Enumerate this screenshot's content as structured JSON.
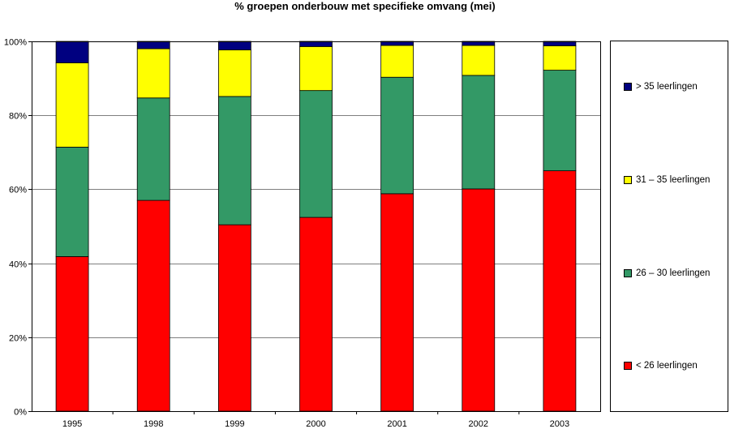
{
  "chart_data": {
    "type": "bar",
    "stacked": true,
    "title": "% groepen onderbouw met specifieke omvang (mei)",
    "xlabel": "",
    "ylabel": "",
    "categories": [
      "1995",
      "1998",
      "1999",
      "2000",
      "2001",
      "2002",
      "2003"
    ],
    "ylim": [
      0,
      100
    ],
    "yticks": [
      "0%",
      "20%",
      "40%",
      "60%",
      "80%",
      "100%"
    ],
    "grid": true,
    "legend_position": "right",
    "series": [
      {
        "name": "< 26 leerlingen",
        "color": "#ff0000",
        "values": [
          41.8,
          57.0,
          50.4,
          52.4,
          58.8,
          60.1,
          65.0
        ]
      },
      {
        "name": "26 – 30 leerlingen",
        "color": "#339966",
        "values": [
          29.6,
          27.7,
          34.7,
          34.3,
          31.5,
          30.7,
          27.2
        ]
      },
      {
        "name": "31 – 35 leerlingen",
        "color": "#ffff00",
        "values": [
          22.8,
          13.3,
          12.6,
          11.9,
          8.6,
          8.1,
          6.6
        ]
      },
      {
        "name": "> 35 leerlingen",
        "color": "#000080",
        "values": [
          5.8,
          2.0,
          2.3,
          1.4,
          1.1,
          1.1,
          1.2
        ]
      }
    ]
  }
}
